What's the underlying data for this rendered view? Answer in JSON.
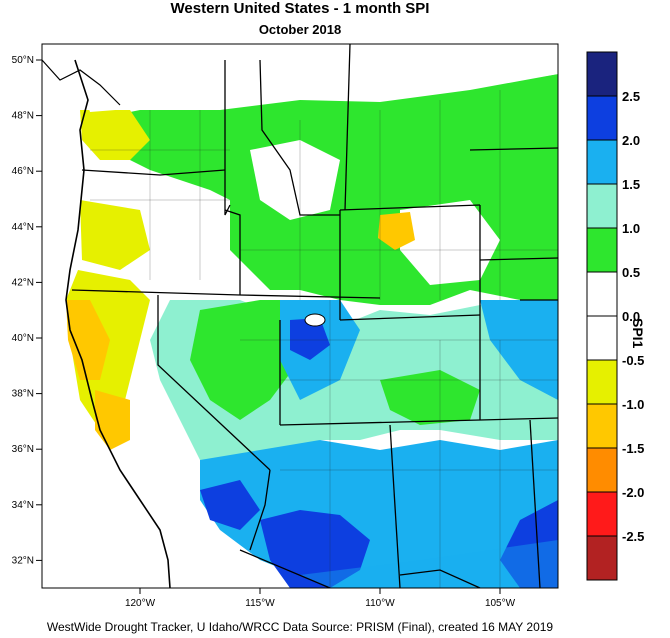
{
  "title": "Western United States - 1 month SPI",
  "subtitle": "October 2018",
  "footer": "WestWide Drought Tracker, U Idaho/WRCC Data Source: PRISM (Final), created 16 MAY 2019",
  "colorbar": {
    "title": "SPI1",
    "bins": [
      {
        "color": "#1a237e"
      },
      {
        "color": "#0d3fe0"
      },
      {
        "color": "#1ab0f0"
      },
      {
        "color": "#8ef0d0"
      },
      {
        "color": "#2ee62e"
      },
      {
        "color": "#ffffff"
      },
      {
        "color": "#ffffff"
      },
      {
        "color": "#e6f000"
      },
      {
        "color": "#ffc800"
      },
      {
        "color": "#ff8c00"
      },
      {
        "color": "#ff1a1a"
      },
      {
        "color": "#b22222"
      }
    ],
    "tick_labels": [
      "2.5",
      "2.0",
      "1.5",
      "1.0",
      "0.5",
      "0.0",
      "-0.5",
      "-1.0",
      "-1.5",
      "-2.0",
      "-2.5"
    ]
  },
  "axes": {
    "lat_labels": [
      "50°N",
      "48°N",
      "46°N",
      "44°N",
      "42°N",
      "40°N",
      "38°N",
      "36°N",
      "34°N",
      "32°N"
    ],
    "lon_labels": [
      "120°W",
      "115°W",
      "110°W",
      "105°W"
    ]
  }
}
